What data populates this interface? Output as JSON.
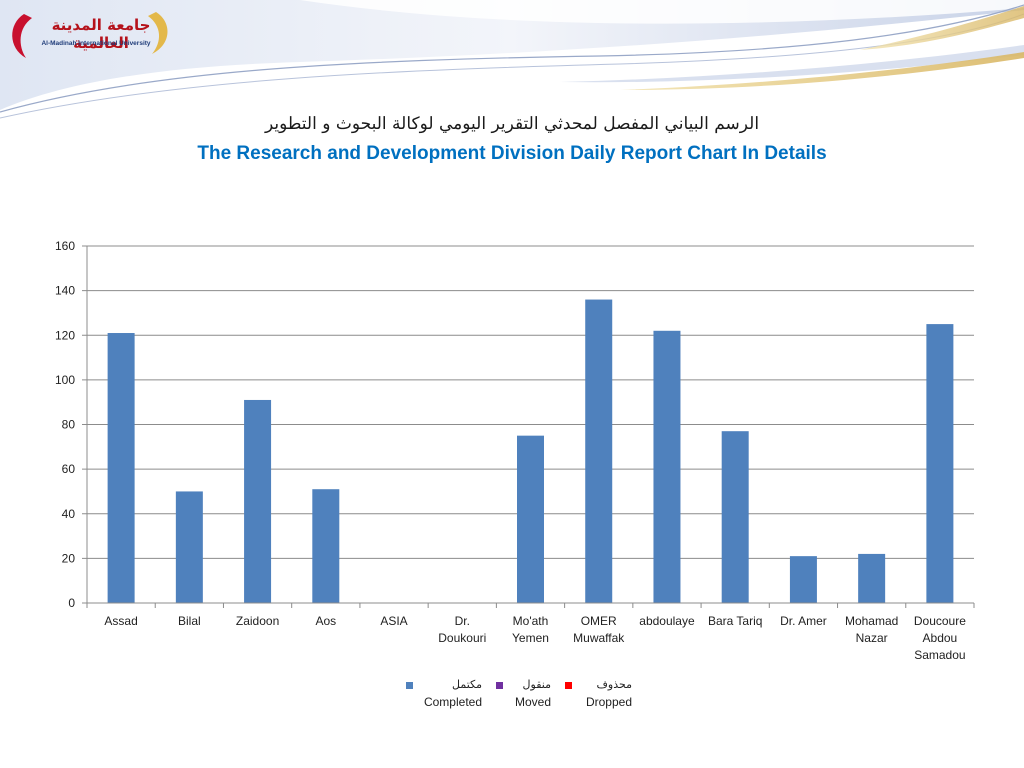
{
  "header": {
    "logo_ar": "جامعة المدينة العالمية",
    "logo_en": "Al-Madinah International University",
    "title_ar": "الرسم البياني المفصل لمحدثي التقرير اليومي لوكالة البحوث و التطوير",
    "title_en": "The Research and Development Division Daily Report Chart In Details"
  },
  "chart_data": {
    "type": "bar",
    "title": "The Research and Development Division Daily Report Chart In Details",
    "xlabel": "",
    "ylabel": "",
    "ylim": [
      0,
      160
    ],
    "yticks": [
      0,
      20,
      40,
      60,
      80,
      100,
      120,
      140,
      160
    ],
    "grid": true,
    "legend_position": "bottom",
    "categories": [
      [
        "Assad"
      ],
      [
        "Bilal"
      ],
      [
        "Zaidoon"
      ],
      [
        "Aos"
      ],
      [
        "ASIA"
      ],
      [
        "Dr.",
        "Doukouri"
      ],
      [
        "Mo'ath",
        "Yemen"
      ],
      [
        "OMER",
        "Muwaffak"
      ],
      [
        "abdoulaye"
      ],
      [
        "Bara Tariq"
      ],
      [
        "Dr. Amer"
      ],
      [
        "Mohamad",
        "Nazar"
      ],
      [
        "Doucoure",
        "Abdou",
        "Samadou"
      ]
    ],
    "series": [
      {
        "name": "Completed",
        "name_ar": "مكتمل",
        "color": "#4f81bd",
        "values": [
          121,
          50,
          91,
          51,
          0,
          0,
          75,
          136,
          122,
          77,
          21,
          22,
          125
        ]
      },
      {
        "name": "Moved",
        "name_ar": "منقول",
        "color": "#7030a0",
        "values": [
          0,
          0,
          0,
          0,
          0,
          0,
          0,
          0,
          0,
          0,
          0,
          0,
          0
        ]
      },
      {
        "name": "Dropped",
        "name_ar": "محذوف",
        "color": "#ff0000",
        "values": [
          0,
          0,
          0,
          0,
          0,
          0,
          0,
          0,
          0,
          0,
          0,
          0,
          0
        ]
      }
    ]
  }
}
